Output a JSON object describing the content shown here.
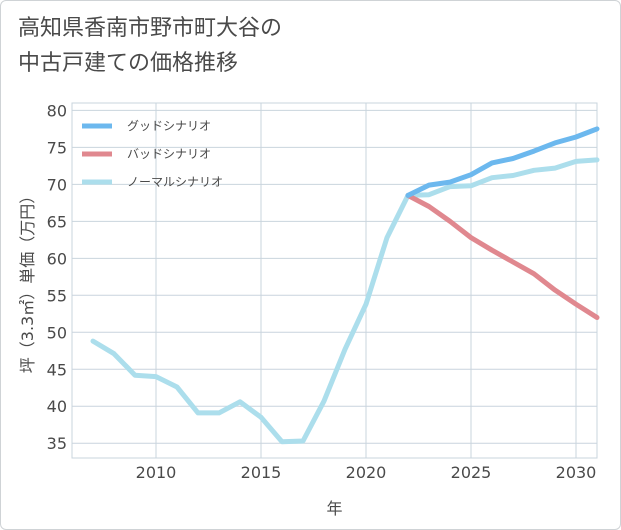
{
  "title": {
    "line1": "高知県香南市野市町大谷の",
    "line2": "中古戸建ての価格推移"
  },
  "chart_data": {
    "type": "line",
    "title": "高知県香南市野市町大谷の中古戸建ての価格推移",
    "xlabel": "年",
    "ylabel": "坪（3.3㎡）単価（万円）",
    "xlim": [
      2006,
      2031
    ],
    "ylim": [
      33,
      81
    ],
    "xticks": [
      2010,
      2015,
      2020,
      2025,
      2030
    ],
    "yticks": [
      35,
      40,
      45,
      50,
      55,
      60,
      65,
      70,
      75,
      80
    ],
    "grid": true,
    "legend_position": "top-left",
    "series": [
      {
        "name": "グッドシナリオ",
        "color": "#6cb8ee",
        "x": [
          2022,
          2023,
          2024,
          2025,
          2026,
          2027,
          2028,
          2029,
          2030,
          2031
        ],
        "y": [
          68.5,
          69.9,
          70.3,
          71.3,
          72.9,
          73.5,
          74.5,
          75.6,
          76.4,
          77.5
        ]
      },
      {
        "name": "バッドシナリオ",
        "color": "#e0888f",
        "x": [
          2022,
          2023,
          2024,
          2025,
          2026,
          2027,
          2028,
          2029,
          2030,
          2031
        ],
        "y": [
          68.5,
          67.0,
          65.0,
          62.8,
          61.1,
          59.5,
          57.9,
          55.7,
          53.8,
          52.0
        ]
      },
      {
        "name": "ノーマルシナリオ",
        "color": "#acdeec",
        "x": [
          2007,
          2008,
          2009,
          2010,
          2011,
          2012,
          2013,
          2014,
          2015,
          2016,
          2017,
          2018,
          2019,
          2020,
          2021,
          2022,
          2023,
          2024,
          2025,
          2026,
          2027,
          2028,
          2029,
          2030,
          2031
        ],
        "y": [
          48.8,
          47.1,
          44.2,
          44.0,
          42.6,
          39.1,
          39.1,
          40.6,
          38.5,
          35.2,
          35.3,
          40.7,
          47.7,
          53.8,
          62.8,
          68.5,
          68.6,
          69.7,
          69.8,
          70.9,
          71.2,
          71.9,
          72.2,
          73.1,
          73.3
        ]
      }
    ]
  }
}
